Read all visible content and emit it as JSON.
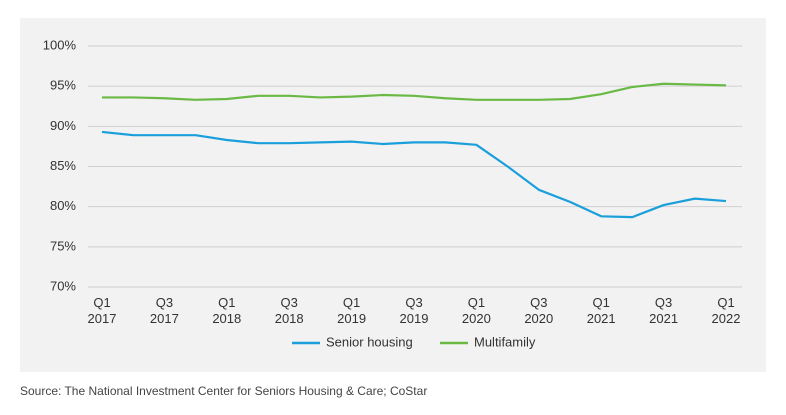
{
  "chart_data": {
    "type": "line",
    "categories": [
      "Q1 2017",
      null,
      "Q3 2017",
      null,
      "Q1 2018",
      null,
      "Q3 2018",
      null,
      "Q1 2019",
      null,
      "Q3 2019",
      null,
      "Q1 2020",
      null,
      "Q3 2020",
      null,
      "Q1 2021",
      null,
      "Q3 2021",
      null,
      "Q1 2022"
    ],
    "series": [
      {
        "name": "Senior housing",
        "color": "#1a9fdb",
        "values": [
          89.3,
          88.9,
          88.9,
          88.9,
          88.3,
          87.9,
          87.9,
          88.0,
          88.1,
          87.8,
          88.0,
          88.0,
          87.7,
          85.0,
          82.1,
          80.6,
          78.8,
          78.7,
          80.2,
          81.0,
          80.7
        ]
      },
      {
        "name": "Multifamily",
        "color": "#6ab945",
        "values": [
          93.6,
          93.6,
          93.5,
          93.3,
          93.4,
          93.8,
          93.8,
          93.6,
          93.7,
          93.9,
          93.8,
          93.5,
          93.3,
          93.3,
          93.3,
          93.4,
          94.0,
          94.9,
          95.3,
          95.2,
          95.1
        ]
      }
    ],
    "ylim": [
      70,
      100
    ],
    "yticks": [
      {
        "value": 70,
        "label": "70%"
      },
      {
        "value": 75,
        "label": "75%"
      },
      {
        "value": 80,
        "label": "80%"
      },
      {
        "value": 85,
        "label": "85%"
      },
      {
        "value": 90,
        "label": "90%"
      },
      {
        "value": 95,
        "label": "95%"
      },
      {
        "value": 100,
        "label": "100%"
      }
    ],
    "grid": true,
    "source": "Source: The National Investment Center for Seniors Housing & Care; CoStar"
  }
}
